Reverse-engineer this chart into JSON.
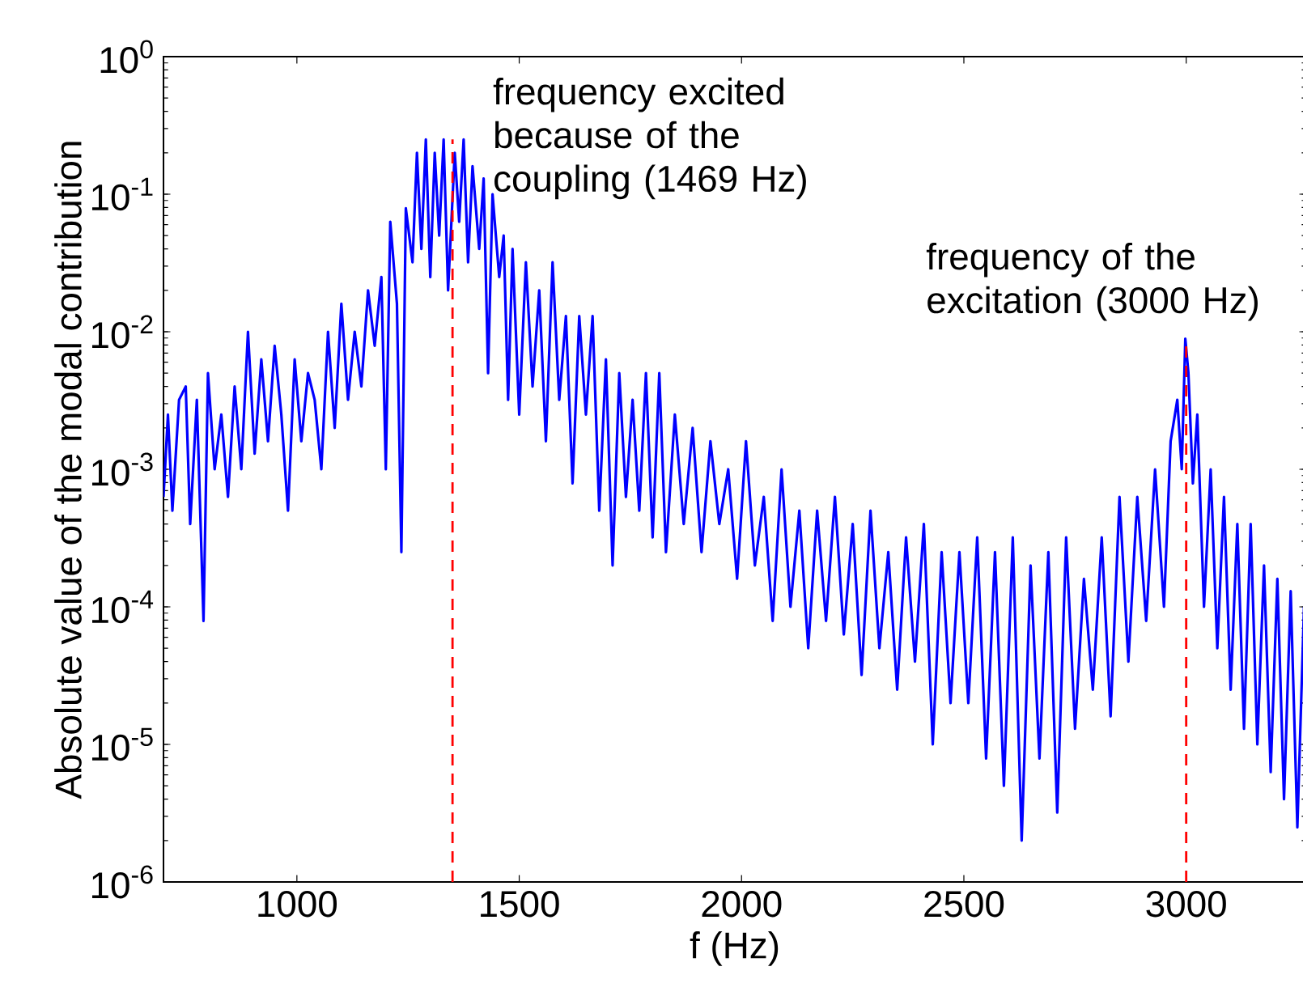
{
  "chart_data": {
    "type": "line",
    "xlabel": "f (Hz)",
    "ylabel": "Absolute value of the modal contribution",
    "log": "y",
    "grid": false,
    "marker": "none",
    "line_style": "solid",
    "xlim": [
      700,
      3270
    ],
    "xticks": [
      1000,
      1500,
      2000,
      2500,
      3000
    ],
    "ylim": [
      1e-06,
      1
    ],
    "yticks": [
      {
        "value": 1e-06,
        "label": "10$^{-6}$"
      },
      {
        "value": 1e-05,
        "label": "10$^{-5}$"
      },
      {
        "value": 0.0001,
        "label": "10$^{-4}$"
      },
      {
        "value": 0.001,
        "label": "10$^{-3}$"
      },
      {
        "value": 0.01,
        "label": "10$^{-2}$"
      },
      {
        "value": 0.1,
        "label": "10$^{-1}$"
      },
      {
        "value": 1,
        "label": "10$^{0}$"
      }
    ],
    "ref_lines": [
      {
        "axis": "x",
        "value": 1350,
        "color": "#ff0000",
        "line_style": "dashed"
      },
      {
        "axis": "x",
        "value": 3000,
        "color": "#ff0000",
        "line_style": "dashed"
      }
    ],
    "annotations": [
      "frequency excited because of the coupling (1469 Hz)",
      "frequency of the excitation (3000 Hz)"
    ],
    "series": [
      {
        "color": "#0000ff",
        "x": [
          700,
          710,
          720,
          735,
          750,
          760,
          775,
          790,
          800,
          815,
          830,
          845,
          860,
          875,
          890,
          905,
          920,
          935,
          950,
          965,
          980,
          995,
          1010,
          1025,
          1040,
          1055,
          1070,
          1085,
          1100,
          1115,
          1130,
          1145,
          1160,
          1175,
          1190,
          1200,
          1210,
          1225,
          1235,
          1245,
          1260,
          1270,
          1280,
          1290,
          1300,
          1310,
          1320,
          1330,
          1340,
          1355,
          1365,
          1375,
          1385,
          1395,
          1410,
          1420,
          1430,
          1440,
          1455,
          1465,
          1475,
          1485,
          1500,
          1515,
          1530,
          1545,
          1560,
          1575,
          1590,
          1605,
          1620,
          1635,
          1650,
          1665,
          1680,
          1695,
          1710,
          1725,
          1740,
          1755,
          1770,
          1785,
          1800,
          1815,
          1830,
          1850,
          1870,
          1890,
          1910,
          1930,
          1950,
          1970,
          1990,
          2010,
          2030,
          2050,
          2070,
          2090,
          2110,
          2130,
          2150,
          2170,
          2190,
          2210,
          2230,
          2250,
          2270,
          2290,
          2310,
          2330,
          2350,
          2370,
          2390,
          2410,
          2430,
          2450,
          2470,
          2490,
          2510,
          2530,
          2550,
          2570,
          2590,
          2610,
          2630,
          2650,
          2670,
          2690,
          2710,
          2730,
          2750,
          2770,
          2790,
          2810,
          2830,
          2850,
          2870,
          2890,
          2910,
          2930,
          2950,
          2965,
          2980,
          2990,
          2998,
          3005,
          3015,
          3025,
          3040,
          3055,
          3070,
          3085,
          3100,
          3115,
          3130,
          3145,
          3160,
          3175,
          3190,
          3205,
          3220,
          3235,
          3250,
          3265
        ],
        "values": [
          0.00063,
          0.0025,
          0.0005,
          0.0032,
          0.004,
          0.0004,
          0.0032,
          7.9e-05,
          0.005,
          0.001,
          0.0025,
          0.00063,
          0.004,
          0.001,
          0.01,
          0.0013,
          0.0063,
          0.0016,
          0.0079,
          0.0025,
          0.0005,
          0.0063,
          0.0016,
          0.005,
          0.0032,
          0.001,
          0.01,
          0.002,
          0.016,
          0.0032,
          0.01,
          0.004,
          0.02,
          0.0079,
          0.025,
          0.001,
          0.063,
          0.016,
          0.00025,
          0.079,
          0.032,
          0.2,
          0.04,
          0.25,
          0.025,
          0.2,
          0.05,
          0.25,
          0.02,
          0.2,
          0.063,
          0.25,
          0.032,
          0.16,
          0.04,
          0.13,
          0.005,
          0.1,
          0.025,
          0.05,
          0.0032,
          0.04,
          0.0025,
          0.032,
          0.004,
          0.02,
          0.0016,
          0.032,
          0.0032,
          0.013,
          0.00079,
          0.013,
          0.0025,
          0.013,
          0.0005,
          0.0063,
          0.0002,
          0.005,
          0.00063,
          0.0032,
          0.0005,
          0.005,
          0.00032,
          0.005,
          0.00025,
          0.0025,
          0.0004,
          0.002,
          0.00025,
          0.0016,
          0.0004,
          0.001,
          0.00016,
          0.0016,
          0.0002,
          0.00063,
          7.9e-05,
          0.001,
          0.0001,
          0.0005,
          5e-05,
          0.0005,
          7.9e-05,
          0.00063,
          6.3e-05,
          0.0004,
          3.2e-05,
          0.0005,
          5e-05,
          0.00025,
          2.5e-05,
          0.00032,
          4e-05,
          0.0004,
          1e-05,
          0.00025,
          2e-05,
          0.00025,
          2e-05,
          0.00032,
          7.9e-06,
          0.00025,
          5e-06,
          0.00032,
          2e-06,
          0.0002,
          7.9e-06,
          0.00025,
          3.2e-06,
          0.00032,
          1.3e-05,
          0.00016,
          2.5e-05,
          0.00032,
          1.6e-05,
          0.00063,
          4e-05,
          0.00063,
          7.9e-05,
          0.001,
          0.0001,
          0.0016,
          0.0032,
          0.001,
          0.0089,
          0.005,
          0.00079,
          0.0025,
          0.0001,
          0.001,
          5e-05,
          0.00063,
          2.5e-05,
          0.0004,
          1.3e-05,
          0.0004,
          1e-05,
          0.0002,
          6.3e-06,
          0.00016,
          4e-06,
          0.00013,
          2.5e-06,
          0.0001
        ]
      }
    ]
  }
}
